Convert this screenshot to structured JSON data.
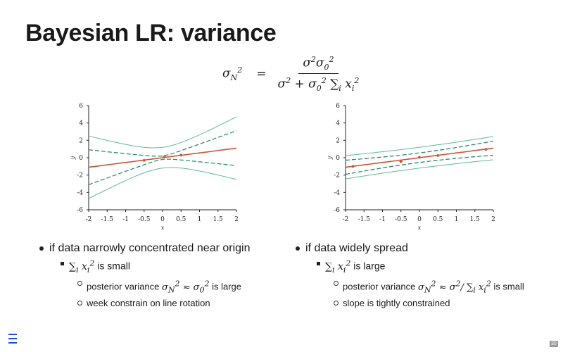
{
  "slide": {
    "title": "Bayesian LR: variance",
    "formula": {
      "lhs": "σN²",
      "equals": "=",
      "numerator": "σ²σ0²",
      "denominator": "σ² + σ0² ∑i xi²"
    },
    "page_number": "30",
    "menu_icon": "hamburger-menu-icon"
  },
  "left_panel": {
    "bullet": "if data narrowly concentrated near origin",
    "sub": "∑i xi² is small",
    "subsub": [
      "posterior variance σN² ≈ σ0² is large",
      "week constrain on line rotation"
    ]
  },
  "right_panel": {
    "bullet": "if data widely spread",
    "sub": "∑i xi² is large",
    "subsub": [
      "posterior variance σN² ≈ σ²/ ∑i xi² is small",
      "slope is tightly constrained"
    ]
  },
  "chart_data": [
    {
      "type": "line",
      "xlabel": "x",
      "ylabel": "y",
      "xlim": [
        -2,
        2
      ],
      "ylim": [
        -6,
        6
      ],
      "xticks": [
        "-2",
        "-1.5",
        "-1",
        "-0.5",
        "0",
        "0.5",
        "1",
        "1.5",
        "2"
      ],
      "yticks": [
        "-6",
        "-4",
        "-2",
        "0",
        "2",
        "4",
        "6"
      ],
      "colors": {
        "mean": "#c8553d",
        "inner_band": "#2e8b6e",
        "outer_band": "#5fb89b",
        "points": "#c8553d"
      },
      "mean": {
        "intercept": 0.0,
        "slope": 0.55
      },
      "inner_band": {
        "a": 0.2,
        "b": 1.0
      },
      "outer_band": {
        "a": 1.2,
        "b": 1.7
      },
      "points": [
        {
          "x": -0.5,
          "y": -0.3
        },
        {
          "x": 0.05,
          "y": 0.1
        },
        {
          "x": 0.5,
          "y": 0.3
        }
      ]
    },
    {
      "type": "line",
      "xlabel": "x",
      "ylabel": "y",
      "xlim": [
        -2,
        2
      ],
      "ylim": [
        -6,
        6
      ],
      "xticks": [
        "-2",
        "-1.5",
        "-1",
        "-0.5",
        "0",
        "0.5",
        "1",
        "1.5",
        "2"
      ],
      "yticks": [
        "-6",
        "-4",
        "-2",
        "0",
        "2",
        "4",
        "6"
      ],
      "colors": {
        "mean": "#c8553d",
        "inner_band": "#2e8b6e",
        "outer_band": "#5fb89b",
        "points": "#c8553d"
      },
      "mean": {
        "intercept": 0.0,
        "slope": 0.55
      },
      "inner_band": {
        "a": 0.55,
        "b": 0.3
      },
      "outer_band": {
        "a": 1.2,
        "b": 0.3
      },
      "points": [
        {
          "x": -1.8,
          "y": -1.0
        },
        {
          "x": -0.5,
          "y": -0.45
        },
        {
          "x": 0.0,
          "y": 0.05
        },
        {
          "x": 0.5,
          "y": 0.25
        },
        {
          "x": 1.8,
          "y": 0.95
        }
      ]
    }
  ]
}
